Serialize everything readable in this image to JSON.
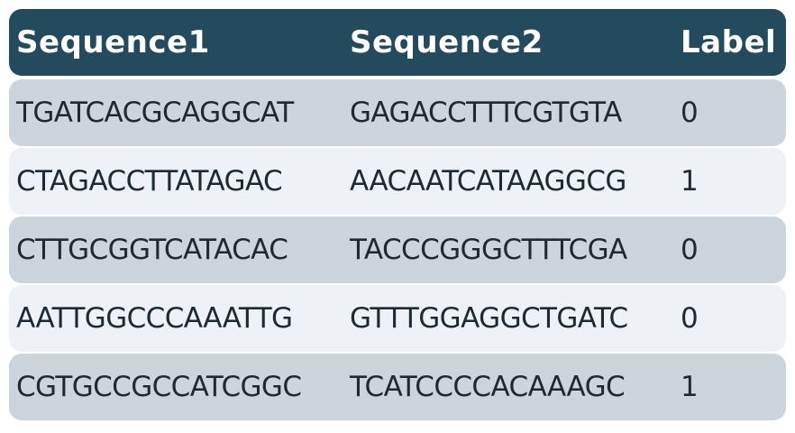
{
  "table": {
    "headers": [
      "Sequence1",
      "Sequence2",
      "Label"
    ],
    "rows": [
      [
        "TGATCACGCAGGCAT",
        "GAGACCTTTCGTGTA",
        "0"
      ],
      [
        "CTAGACCTTATAGAC",
        "AACAATCATAAGGCG",
        "1"
      ],
      [
        "CTTGCGGTCATACAC",
        "TACCCGGGCTTTCGA",
        "0"
      ],
      [
        "AATTGGCCCAAATTG",
        "GTTTGGAGGCTGATC",
        "0"
      ],
      [
        "CGTGCCGCCATCGGC",
        "TCATCCCCACAAAGC",
        "1"
      ]
    ]
  },
  "colors": {
    "header_bg": "#244a5e",
    "header_text": "#ffffff",
    "row_dark": "#cdd5dc",
    "row_light": "#eef2f6",
    "cell_text": "#1e2a33"
  }
}
